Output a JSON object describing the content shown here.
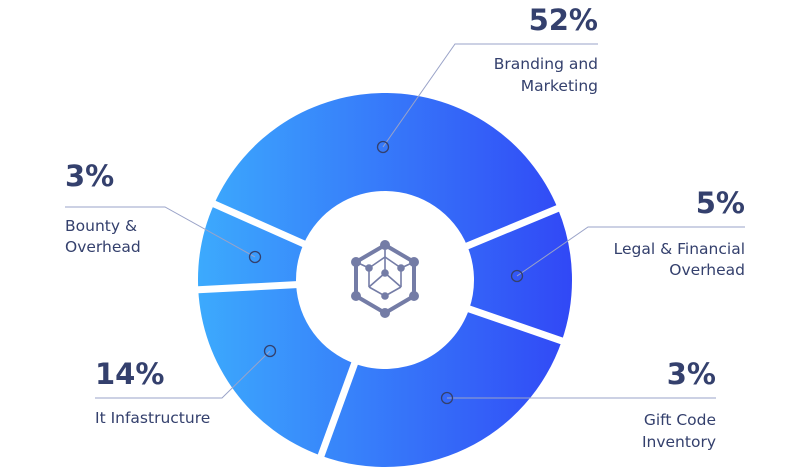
{
  "chart_data": {
    "type": "pie",
    "title": "",
    "donut": true,
    "slices": [
      {
        "label_lines": [
          "Branding and",
          "Marketing"
        ],
        "value": 52,
        "value_label": "52%"
      },
      {
        "label_lines": [
          "Legal & Financial",
          "Overhead"
        ],
        "value": 5,
        "value_label": "5%"
      },
      {
        "label_lines": [
          "Gift Code",
          "Inventory"
        ],
        "value": 3,
        "value_label": "3%"
      },
      {
        "label_lines": [
          "It Infastructure"
        ],
        "value": 14,
        "value_label": "14%"
      },
      {
        "label_lines": [
          "Bounty &",
          "Overhead"
        ],
        "value": 3,
        "value_label": "3%"
      }
    ],
    "colors": {
      "gradient_start": "#3caafd",
      "gradient_end": "#3148f6",
      "text": "#34406d",
      "leader_line": "#9aa3c8",
      "icon": "#747ca6"
    },
    "center_icon": "network-cube-icon"
  }
}
